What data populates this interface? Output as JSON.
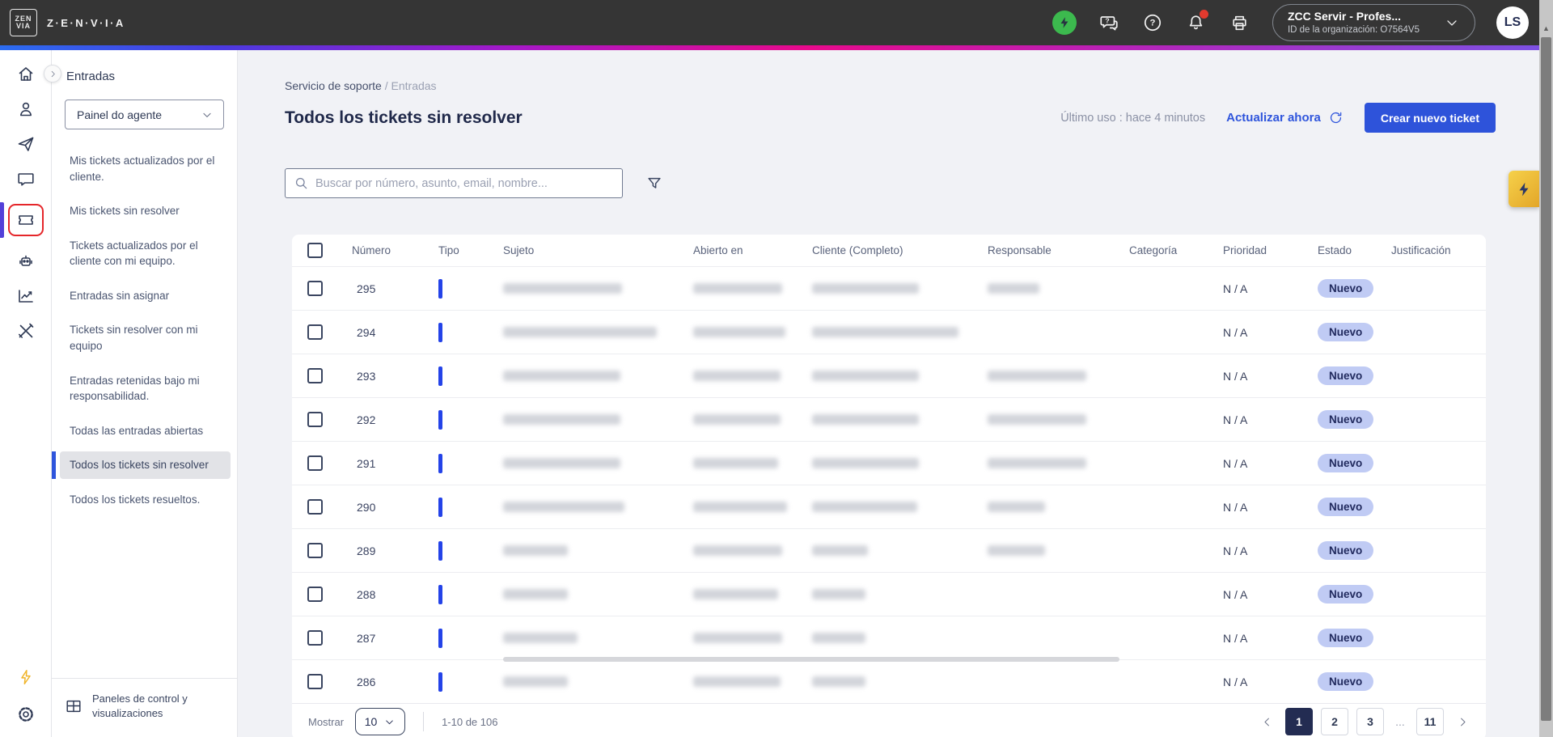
{
  "topbar": {
    "brand": "Z·E·N·V·I·A",
    "logo_line1": "ZEN",
    "logo_line2": "VIA",
    "org_name": "ZCC Servir - Profes...",
    "org_id": "ID de la organización: O7564V5",
    "avatar_initials": "LS"
  },
  "sidebar": {
    "title": "Entradas",
    "panel_select_value": "Painel do agente",
    "items": [
      {
        "label": "Mis tickets actualizados por el cliente.",
        "active": false
      },
      {
        "label": "Mis tickets sin resolver",
        "active": false
      },
      {
        "label": "Tickets actualizados por el cliente con mi equipo.",
        "active": false
      },
      {
        "label": "Entradas sin asignar",
        "active": false
      },
      {
        "label": "Tickets sin resolver con mi equipo",
        "active": false
      },
      {
        "label": "Entradas retenidas bajo mi responsabilidad.",
        "active": false
      },
      {
        "label": "Todas las entradas abiertas",
        "active": false
      },
      {
        "label": "Todos los tickets sin resolver",
        "active": true
      },
      {
        "label": "Todos los tickets resueltos.",
        "active": false
      }
    ],
    "footer_label": "Paneles de control y visualizaciones"
  },
  "header": {
    "breadcrumb_root": "Servicio de soporte",
    "breadcrumb_sep": "/",
    "breadcrumb_current": "Entradas",
    "title": "Todos los tickets sin resolver",
    "last_used": "Último uso : hace 4 minutos",
    "refresh_label": "Actualizar ahora",
    "create_ticket_label": "Crear nuevo ticket"
  },
  "search": {
    "placeholder": "Buscar por número, asunto, email, nombre..."
  },
  "table": {
    "columns": [
      "Número",
      "Tipo",
      "Sujeto",
      "Abierto en",
      "Cliente (Completo)",
      "Responsable",
      "Categoría",
      "Prioridad",
      "Estado",
      "Justificación"
    ],
    "rows": [
      {
        "numero": "295",
        "prioridad": "N / A",
        "estado": "Nuevo",
        "redacted": {
          "sujeto": 147,
          "abierto": 110,
          "cliente": 132,
          "responsable": 64
        }
      },
      {
        "numero": "294",
        "prioridad": "N / A",
        "estado": "Nuevo",
        "redacted": {
          "sujeto": 190,
          "abierto": 114,
          "cliente": 181,
          "responsable": 0
        }
      },
      {
        "numero": "293",
        "prioridad": "N / A",
        "estado": "Nuevo",
        "redacted": {
          "sujeto": 145,
          "abierto": 108,
          "cliente": 132,
          "responsable": 122
        }
      },
      {
        "numero": "292",
        "prioridad": "N / A",
        "estado": "Nuevo",
        "redacted": {
          "sujeto": 145,
          "abierto": 108,
          "cliente": 132,
          "responsable": 122
        }
      },
      {
        "numero": "291",
        "prioridad": "N / A",
        "estado": "Nuevo",
        "redacted": {
          "sujeto": 145,
          "abierto": 105,
          "cliente": 132,
          "responsable": 122
        }
      },
      {
        "numero": "290",
        "prioridad": "N / A",
        "estado": "Nuevo",
        "redacted": {
          "sujeto": 150,
          "abierto": 116,
          "cliente": 130,
          "responsable": 71
        }
      },
      {
        "numero": "289",
        "prioridad": "N / A",
        "estado": "Nuevo",
        "redacted": {
          "sujeto": 80,
          "abierto": 110,
          "cliente": 69,
          "responsable": 71
        }
      },
      {
        "numero": "288",
        "prioridad": "N / A",
        "estado": "Nuevo",
        "redacted": {
          "sujeto": 80,
          "abierto": 105,
          "cliente": 66,
          "responsable": 0
        }
      },
      {
        "numero": "287",
        "prioridad": "N / A",
        "estado": "Nuevo",
        "redacted": {
          "sujeto": 92,
          "abierto": 110,
          "cliente": 66,
          "responsable": 0
        }
      },
      {
        "numero": "286",
        "prioridad": "N / A",
        "estado": "Nuevo",
        "redacted": {
          "sujeto": 80,
          "abierto": 108,
          "cliente": 66,
          "responsable": 0
        }
      }
    ]
  },
  "pagination": {
    "mostrar_label": "Mostrar",
    "page_size": "10",
    "range_text": "1-10 de 106",
    "pages": [
      {
        "label": "1",
        "active": true
      },
      {
        "label": "2",
        "active": false
      },
      {
        "label": "3",
        "active": false
      },
      {
        "label": "...",
        "active": false,
        "ellipsis": true
      },
      {
        "label": "11",
        "active": false
      }
    ]
  },
  "colors": {
    "accent_blue": "#2F55DC",
    "topbar_bg": "#353535",
    "badge_bg": "#C0CBF4",
    "badge_text": "#212A5E",
    "highlight_red": "#E5262A",
    "rail_active_indicator": "#5240D9",
    "tipo_bar_blue": "#2443E8",
    "lightning_yellow": "#F0B429",
    "status_green": "#3CB94E",
    "active_page_bg": "#232C52",
    "gradient_bar": [
      "#2B6CF0",
      "#A518C8",
      "#E80A8C",
      "#7B52E4"
    ]
  }
}
